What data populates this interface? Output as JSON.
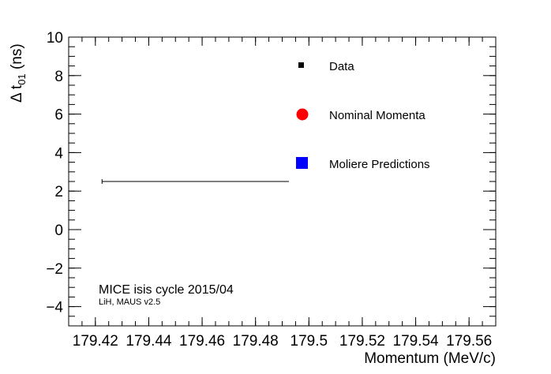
{
  "chart_data": {
    "type": "scatter",
    "title": "",
    "xlabel": "Momentum (MeV/c)",
    "ylabel_main": "Δ t",
    "ylabel_sub": "01",
    "ylabel_unit": " (ns)",
    "xlim": [
      179.41,
      179.57
    ],
    "ylim": [
      -5,
      10
    ],
    "x_ticks": [
      179.42,
      179.44,
      179.46,
      179.48,
      179.5,
      179.52,
      179.54,
      179.56
    ],
    "x_tick_labels": [
      "179.42",
      "179.44",
      "179.46",
      "179.48",
      "179.5",
      "179.52",
      "179.54",
      "179.56"
    ],
    "y_ticks": [
      -4,
      -2,
      0,
      2,
      4,
      6,
      8,
      10
    ],
    "y_tick_labels": [
      "−4",
      "−2",
      "0",
      "2",
      "4",
      "6",
      "8",
      "10"
    ],
    "grid": false,
    "legend_position": "top-right",
    "series": [
      {
        "name": "Data",
        "marker": "square-small",
        "color": "#000000",
        "points": [
          {
            "x": 179.4625,
            "y": 2.5,
            "xerr_low": 179.4225,
            "xerr_high": 179.4925
          }
        ]
      },
      {
        "name": "Nominal Momenta",
        "marker": "circle",
        "color": "#ff0000",
        "points": []
      },
      {
        "name": "Moliere Predictions",
        "marker": "square",
        "color": "#0000ff",
        "points": []
      }
    ],
    "annotations": [
      "MICE isis cycle 2015/04",
      "LiH, MAUS v2.5"
    ]
  }
}
